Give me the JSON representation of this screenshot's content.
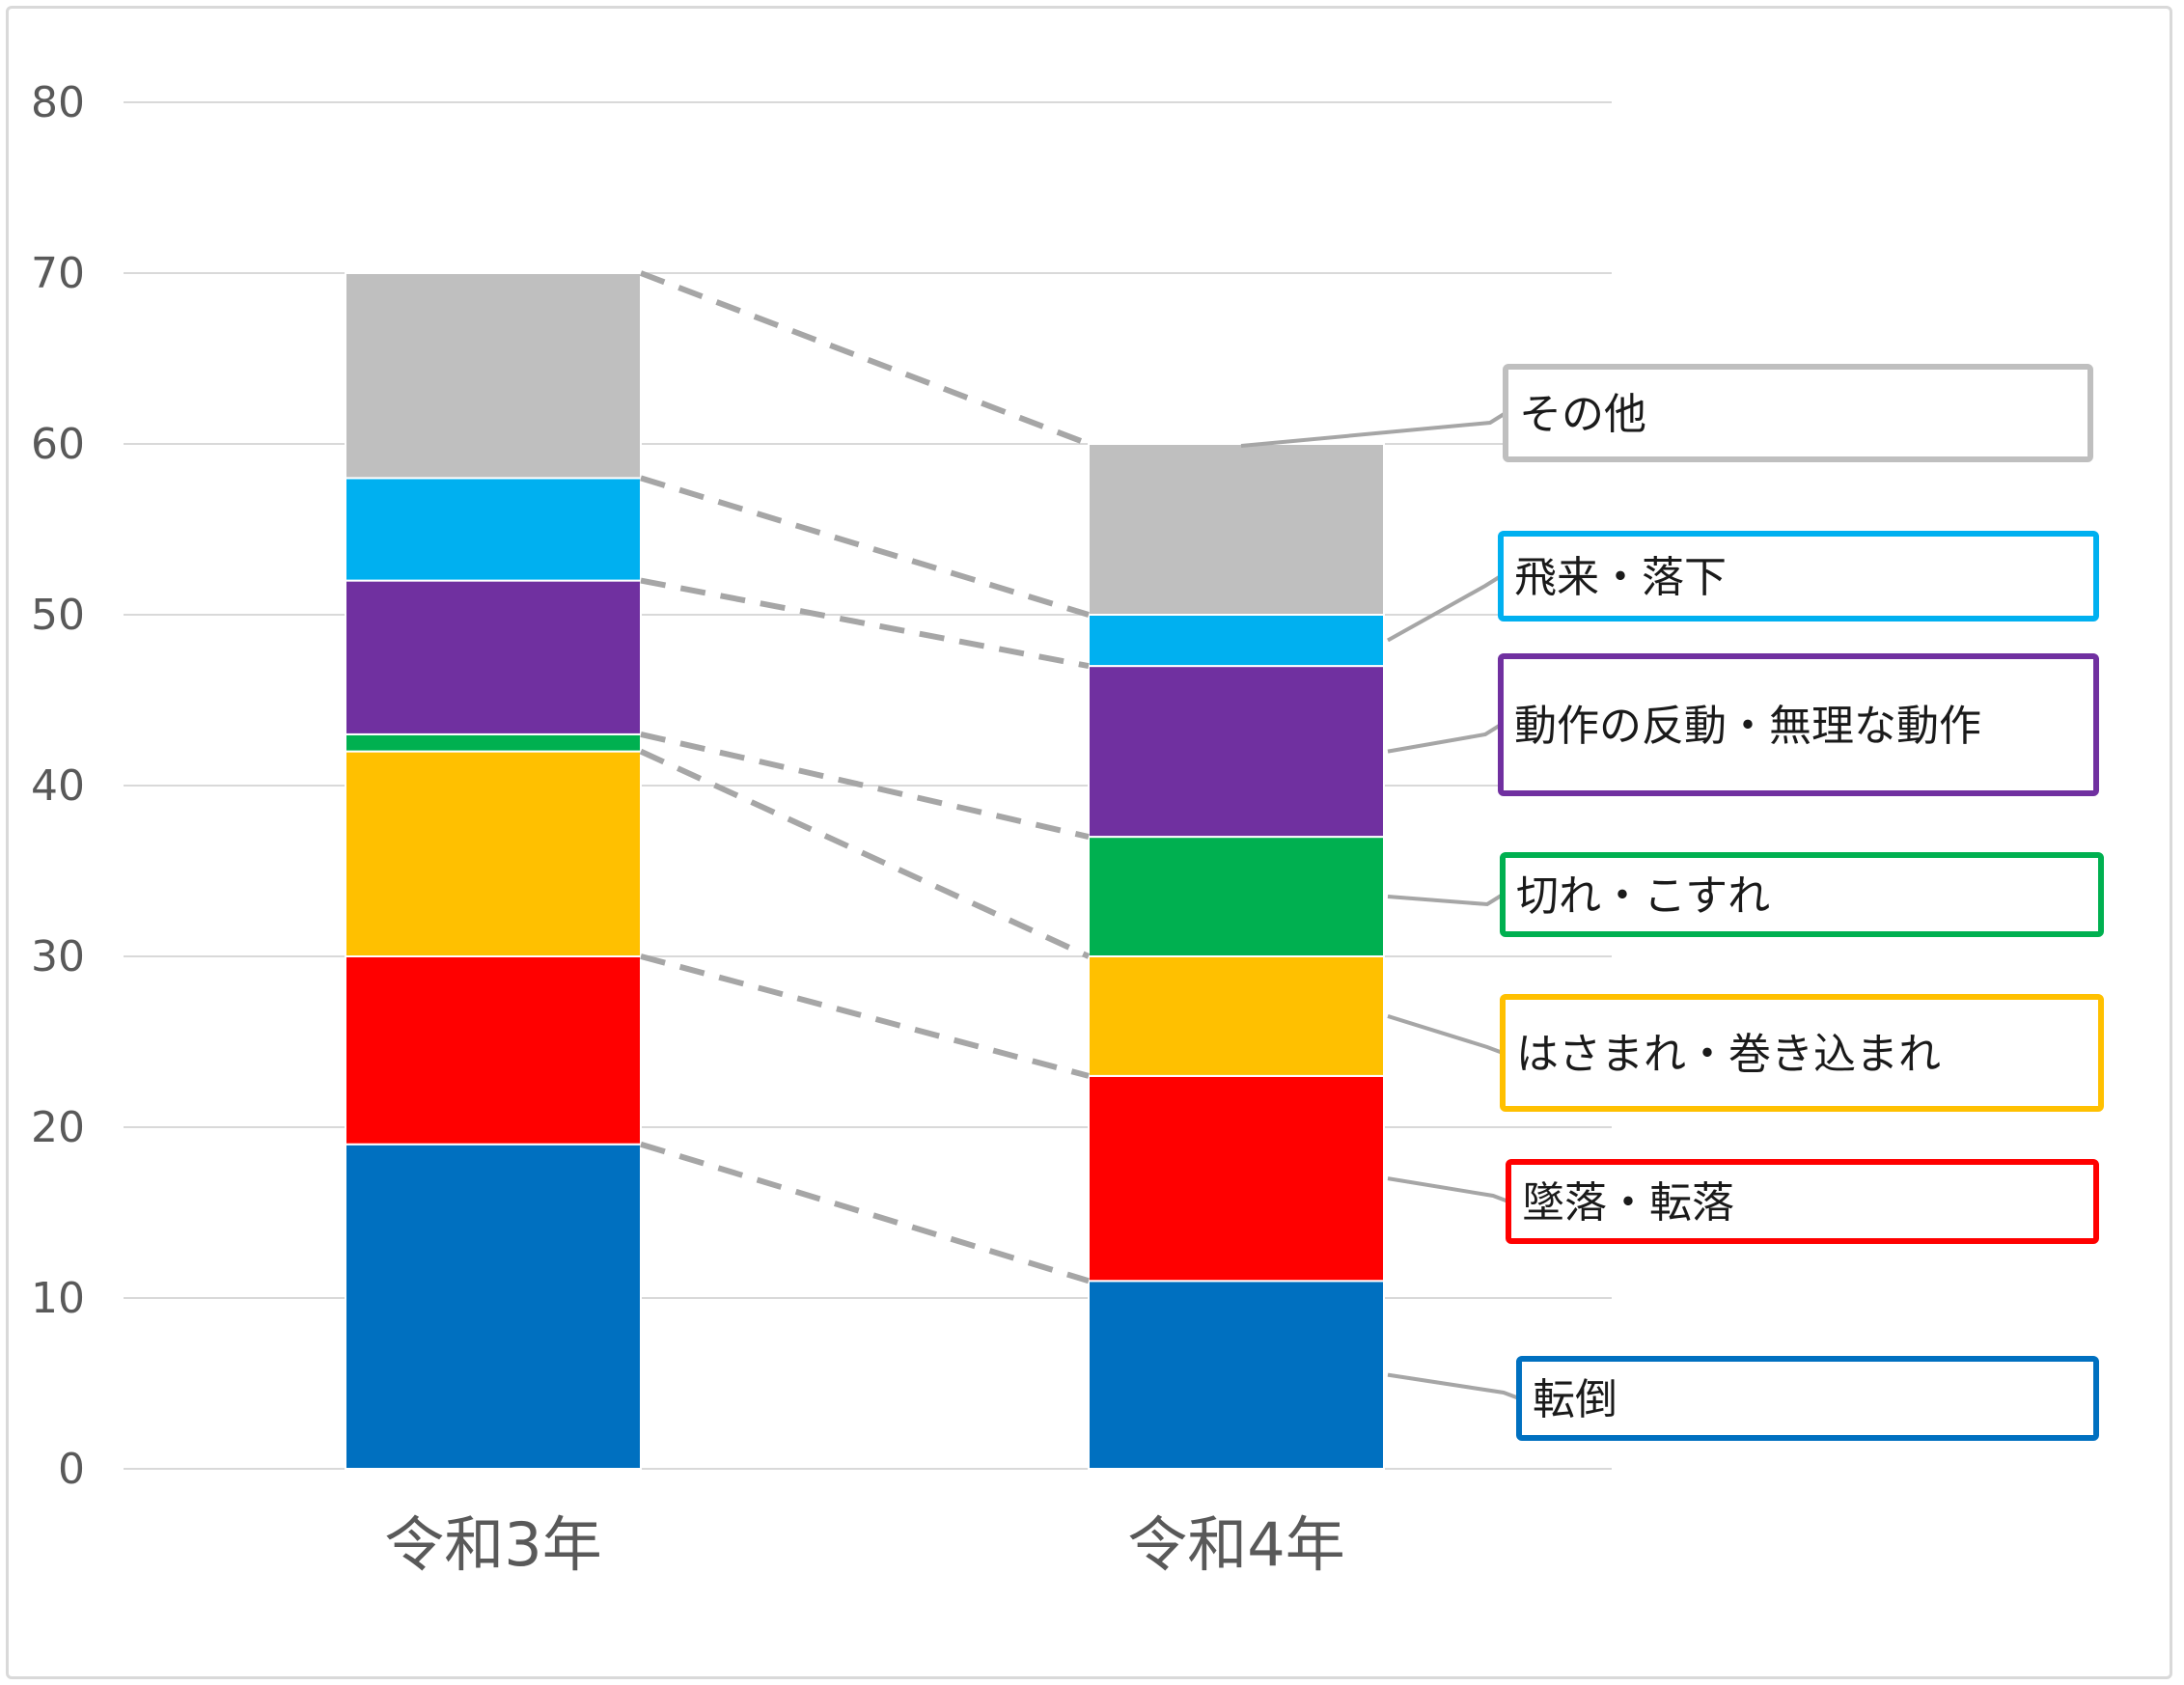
{
  "chart_data": {
    "type": "bar",
    "stacked": true,
    "categories": [
      "令和3年",
      "令和4年"
    ],
    "ylim": [
      0,
      80
    ],
    "yticks": [
      0,
      10,
      20,
      30,
      40,
      50,
      60,
      70,
      80
    ],
    "grid": true,
    "series": [
      {
        "name": "転倒",
        "values": [
          19,
          11
        ],
        "color": "#0070C0"
      },
      {
        "name": "墜落・転落",
        "values": [
          11,
          12
        ],
        "color": "#FF0000"
      },
      {
        "name": "はさまれ・巻き込まれ",
        "values": [
          12,
          7
        ],
        "color": "#FFC000"
      },
      {
        "name": "切れ・こすれ",
        "values": [
          1,
          7
        ],
        "color": "#00B050"
      },
      {
        "name": "動作の反動・無理な動作",
        "values": [
          9,
          10
        ],
        "color": "#7030A0"
      },
      {
        "name": "飛来・落下",
        "values": [
          6,
          3
        ],
        "color": "#00B0F0"
      },
      {
        "name": "その他",
        "values": [
          12,
          10
        ],
        "color": "#BFBFBF"
      }
    ],
    "connector_color": "#A6A6A6"
  }
}
